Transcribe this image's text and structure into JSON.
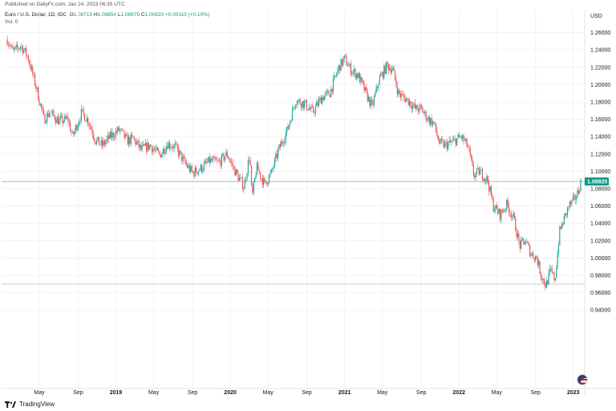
{
  "header": {
    "published": "Published on DailyFx.com, Jan 24, 2023 06:35 UTC",
    "symbol": "Euro / U.S. Dollar, 1D, IDC",
    "open_label": "O",
    "open": "1.08715",
    "high_label": "H",
    "high": "1.08854",
    "low_label": "L",
    "low": "1.08679",
    "close_label": "C",
    "close": "1.08820",
    "change": "+0.00110 (+0.10%)",
    "volume": "Vol. 0"
  },
  "footer": {
    "brand": "TradingView"
  },
  "colors": {
    "up": "#26a69a",
    "down": "#ef5350",
    "price_badge": "#089981",
    "grid": "#f0f3fa"
  },
  "chart_data": {
    "type": "candlestick",
    "currency": "USD",
    "ylim": [
      0.93,
      1.28
    ],
    "yticks": [
      "1.26000",
      "1.24000",
      "1.22000",
      "1.20000",
      "1.18000",
      "1.16000",
      "1.14000",
      "1.12000",
      "1.10000",
      "1.08000",
      "1.06000",
      "1.04000",
      "1.02000",
      "1.00000",
      "0.98000",
      "0.96000",
      "0.94000"
    ],
    "xticks": [
      {
        "t": 2018.33,
        "label": "May",
        "bold": false
      },
      {
        "t": 2018.67,
        "label": "Sep",
        "bold": false
      },
      {
        "t": 2019.0,
        "label": "2019",
        "bold": true
      },
      {
        "t": 2019.33,
        "label": "May",
        "bold": false
      },
      {
        "t": 2019.67,
        "label": "Sep",
        "bold": false
      },
      {
        "t": 2020.0,
        "label": "2020",
        "bold": true
      },
      {
        "t": 2020.33,
        "label": "May",
        "bold": false
      },
      {
        "t": 2020.67,
        "label": "Sep",
        "bold": false
      },
      {
        "t": 2021.0,
        "label": "2021",
        "bold": true
      },
      {
        "t": 2021.33,
        "label": "May",
        "bold": false
      },
      {
        "t": 2021.67,
        "label": "Sep",
        "bold": false
      },
      {
        "t": 2022.0,
        "label": "2022",
        "bold": true
      },
      {
        "t": 2022.33,
        "label": "May",
        "bold": false
      },
      {
        "t": 2022.67,
        "label": "Sep",
        "bold": false
      },
      {
        "t": 2023.0,
        "label": "2023",
        "bold": true
      }
    ],
    "price_path": [
      [
        2018.05,
        1.252
      ],
      [
        2018.1,
        1.238
      ],
      [
        2018.17,
        1.245
      ],
      [
        2018.23,
        1.232
      ],
      [
        2018.3,
        1.198
      ],
      [
        2018.37,
        1.16
      ],
      [
        2018.42,
        1.168
      ],
      [
        2018.5,
        1.158
      ],
      [
        2018.58,
        1.16
      ],
      [
        2018.62,
        1.14
      ],
      [
        2018.7,
        1.168
      ],
      [
        2018.76,
        1.158
      ],
      [
        2018.82,
        1.136
      ],
      [
        2018.88,
        1.13
      ],
      [
        2018.95,
        1.14
      ],
      [
        2019.03,
        1.148
      ],
      [
        2019.1,
        1.135
      ],
      [
        2019.15,
        1.138
      ],
      [
        2019.22,
        1.125
      ],
      [
        2019.3,
        1.13
      ],
      [
        2019.38,
        1.118
      ],
      [
        2019.45,
        1.132
      ],
      [
        2019.52,
        1.128
      ],
      [
        2019.6,
        1.11
      ],
      [
        2019.67,
        1.098
      ],
      [
        2019.75,
        1.104
      ],
      [
        2019.82,
        1.112
      ],
      [
        2019.9,
        1.11
      ],
      [
        2019.97,
        1.12
      ],
      [
        2020.05,
        1.098
      ],
      [
        2020.12,
        1.082
      ],
      [
        2020.17,
        1.12
      ],
      [
        2020.19,
        1.068
      ],
      [
        2020.23,
        1.105
      ],
      [
        2020.3,
        1.085
      ],
      [
        2020.36,
        1.098
      ],
      [
        2020.42,
        1.124
      ],
      [
        2020.5,
        1.148
      ],
      [
        2020.57,
        1.182
      ],
      [
        2020.65,
        1.178
      ],
      [
        2020.72,
        1.168
      ],
      [
        2020.8,
        1.185
      ],
      [
        2020.87,
        1.19
      ],
      [
        2020.95,
        1.22
      ],
      [
        2021.0,
        1.23
      ],
      [
        2021.05,
        1.218
      ],
      [
        2021.12,
        1.21
      ],
      [
        2021.18,
        1.192
      ],
      [
        2021.24,
        1.174
      ],
      [
        2021.3,
        1.205
      ],
      [
        2021.37,
        1.222
      ],
      [
        2021.42,
        1.218
      ],
      [
        2021.47,
        1.19
      ],
      [
        2021.52,
        1.185
      ],
      [
        2021.57,
        1.18
      ],
      [
        2021.62,
        1.172
      ],
      [
        2021.67,
        1.172
      ],
      [
        2021.72,
        1.162
      ],
      [
        2021.78,
        1.155
      ],
      [
        2021.83,
        1.132
      ],
      [
        2021.88,
        1.13
      ],
      [
        2021.95,
        1.134
      ],
      [
        2022.02,
        1.14
      ],
      [
        2022.08,
        1.128
      ],
      [
        2022.13,
        1.095
      ],
      [
        2022.18,
        1.1
      ],
      [
        2022.25,
        1.09
      ],
      [
        2022.3,
        1.06
      ],
      [
        2022.36,
        1.05
      ],
      [
        2022.42,
        1.062
      ],
      [
        2022.48,
        1.045
      ],
      [
        2022.53,
        1.014
      ],
      [
        2022.58,
        1.02
      ],
      [
        2022.63,
        1.005
      ],
      [
        2022.68,
        1.0
      ],
      [
        2022.72,
        0.98
      ],
      [
        2022.76,
        0.968
      ],
      [
        2022.8,
        0.985
      ],
      [
        2022.84,
        0.975
      ],
      [
        2022.88,
        1.03
      ],
      [
        2022.92,
        1.045
      ],
      [
        2022.96,
        1.06
      ],
      [
        2023.0,
        1.065
      ],
      [
        2023.04,
        1.075
      ],
      [
        2023.065,
        1.0882
      ]
    ],
    "last_price": "1.08820",
    "horizontal_lines": [
      1.0882,
      0.9698
    ]
  }
}
